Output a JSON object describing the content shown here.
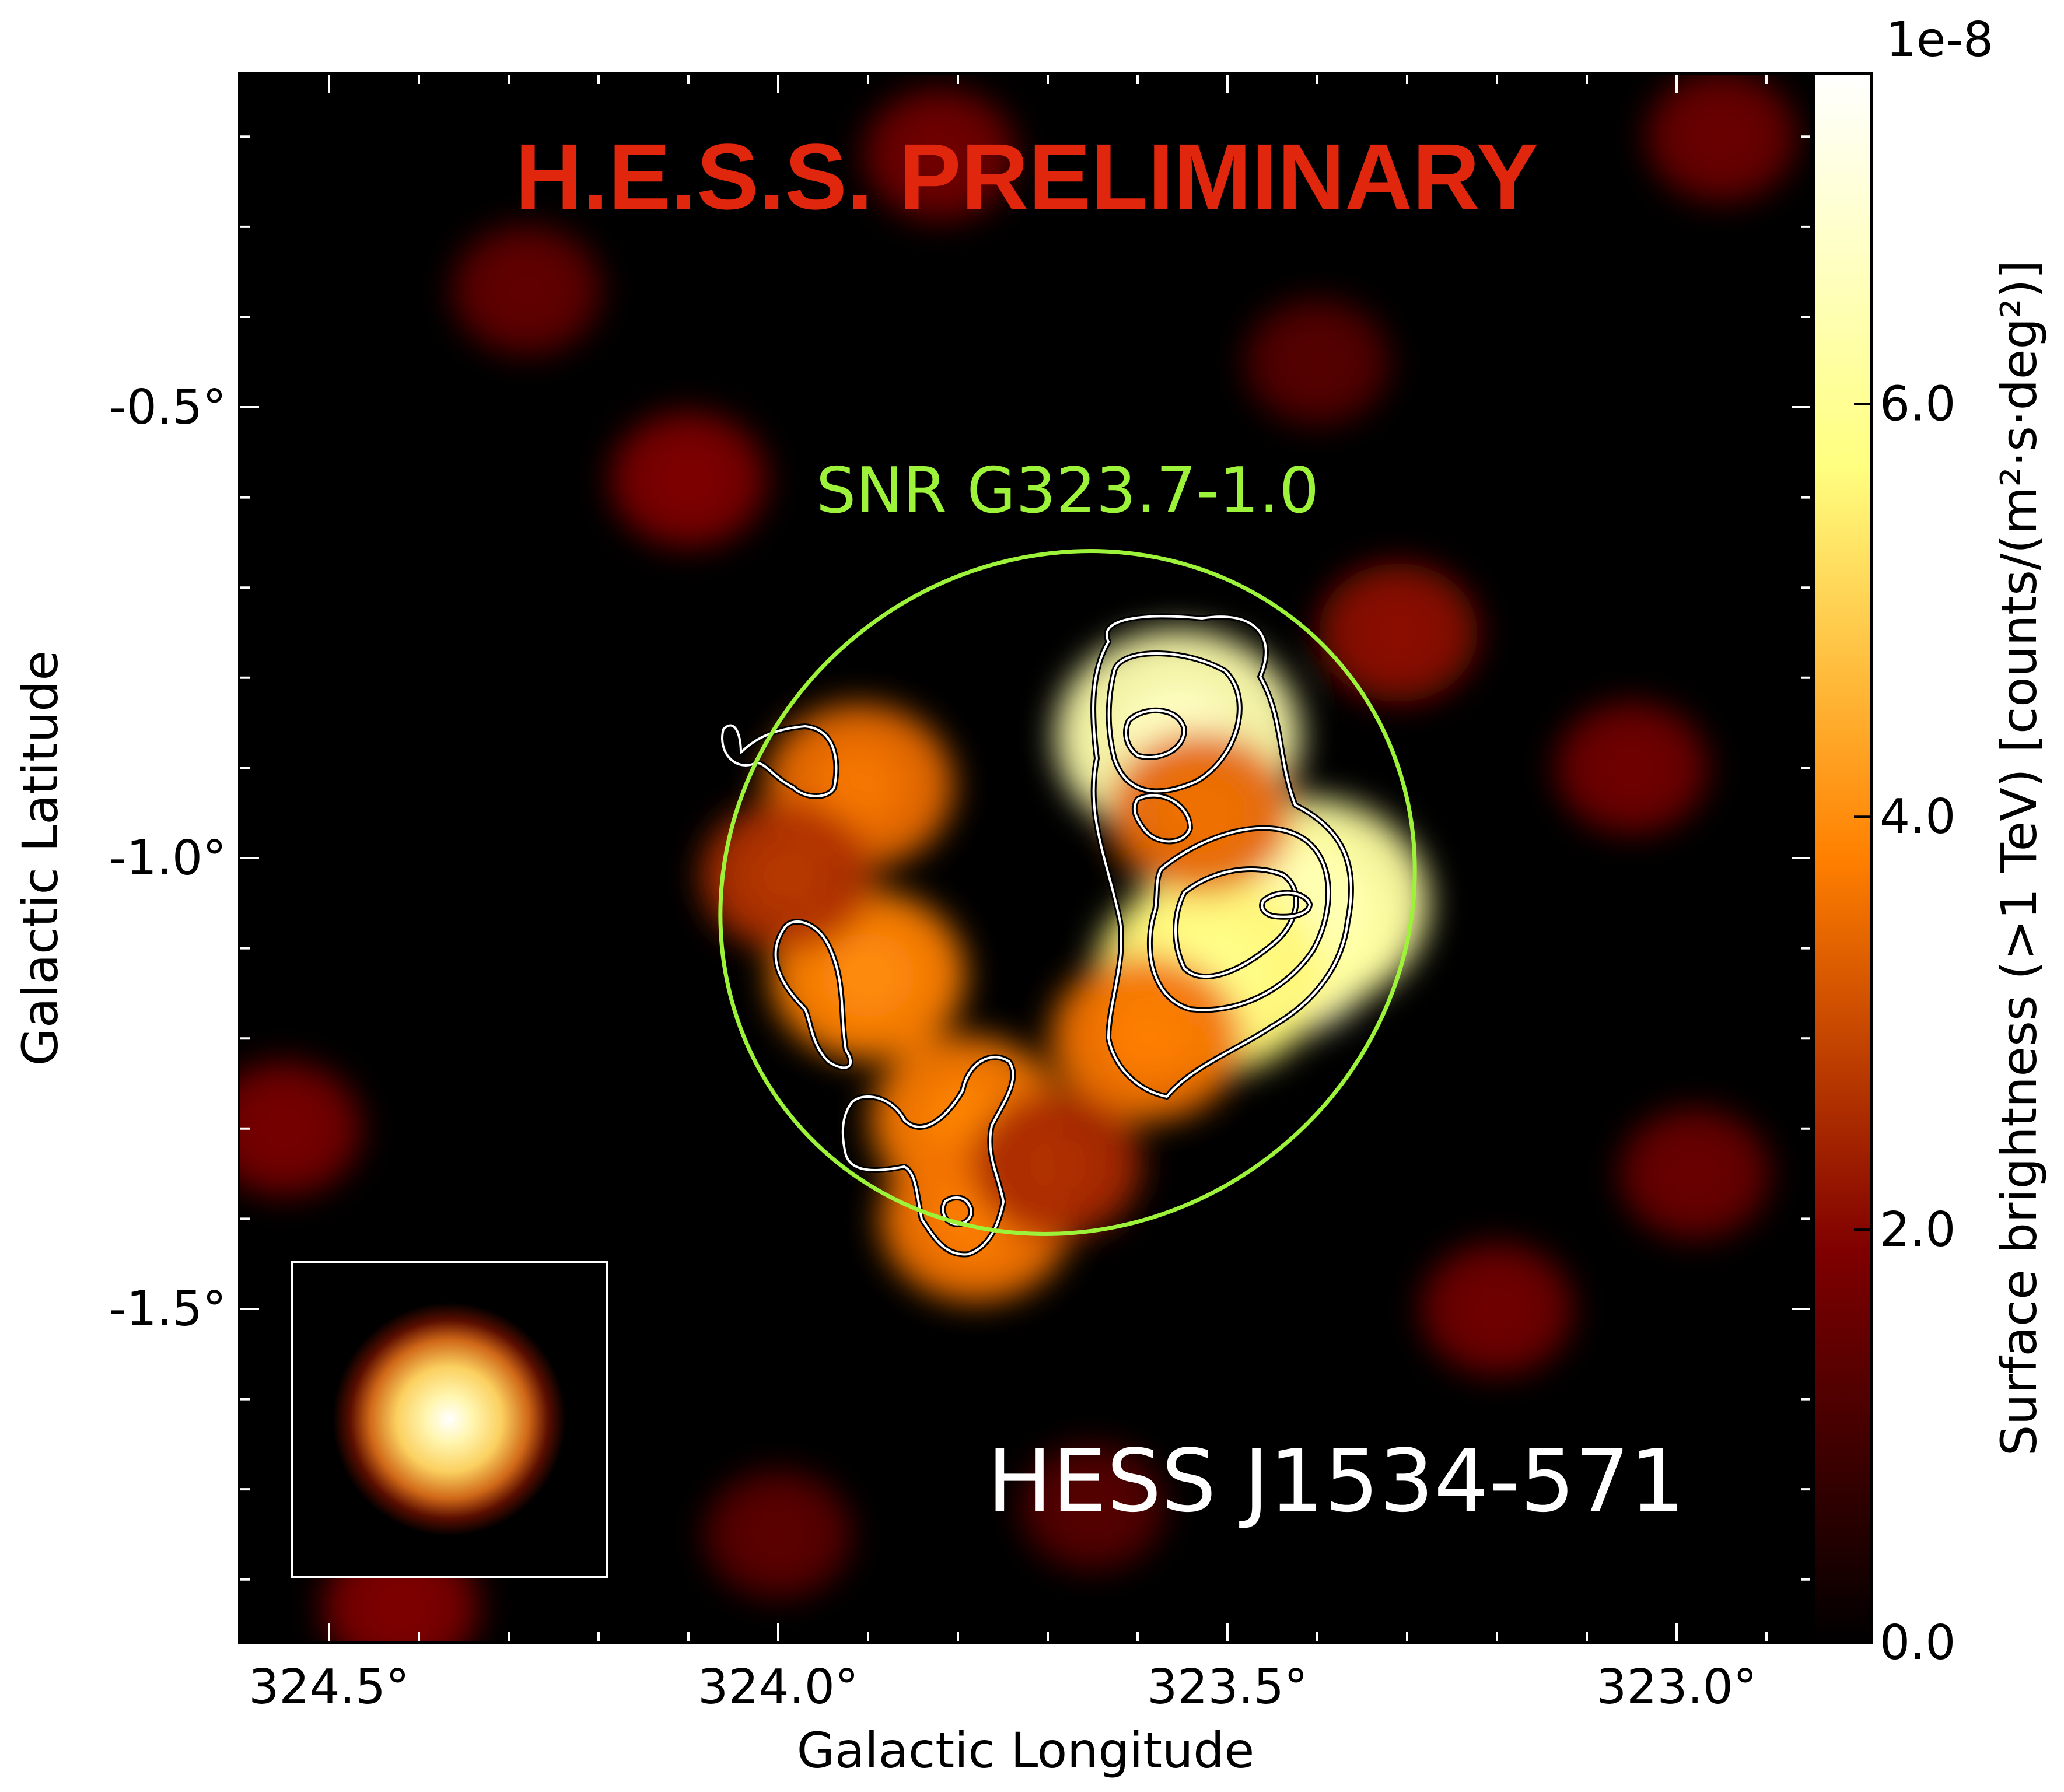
{
  "chart_data": {
    "type": "heatmap",
    "title": "",
    "xlabel": "Galactic Longitude",
    "ylabel": "Galactic Latitude",
    "xlim": [
      324.6,
      322.85
    ],
    "ylim": [
      -1.87,
      -0.13
    ],
    "x_ticks": [
      {
        "value": 324.5,
        "label": "324.5°"
      },
      {
        "value": 324.0,
        "label": "324.0°"
      },
      {
        "value": 323.5,
        "label": "323.5°"
      },
      {
        "value": 323.0,
        "label": "323.0°"
      }
    ],
    "y_ticks": [
      {
        "value": -0.5,
        "label": "-0.5°"
      },
      {
        "value": -1.0,
        "label": "-1.0°"
      },
      {
        "value": -1.5,
        "label": "-1.5°"
      }
    ],
    "colorbar": {
      "label": "Surface brightness (>1 TeV) [counts/(m²·s·deg²)]",
      "offset_label": "1e-8",
      "range": [
        0.0,
        7.6
      ],
      "ticks": [
        {
          "value": 0.0,
          "label": "0.0"
        },
        {
          "value": 2.0,
          "label": "2.0"
        },
        {
          "value": 4.0,
          "label": "4.0"
        },
        {
          "value": 6.0,
          "label": "6.0"
        }
      ],
      "colormap": "afmhot",
      "colors": [
        "#000000",
        "#5a0000",
        "#b33a00",
        "#e88a20",
        "#fbd060",
        "#ffff9a",
        "#ffffff"
      ]
    },
    "annotations": {
      "watermark": "H.E.S.S. PRELIMINARY",
      "watermark_color": "#e0260c",
      "region_label": "SNR G323.7-1.0",
      "region_color": "#9df23a",
      "source_label": "HESS J1534-571",
      "source_color": "#ffffff"
    },
    "region": {
      "shape": "ellipse",
      "center_l": 323.6,
      "center_b": -1.06,
      "semi_major_deg": 0.38,
      "semi_minor_deg": 0.35,
      "orientation": "tilted, major axis from lower-left to upper-right"
    },
    "blobs": [
      {
        "l": 323.555,
        "b": -0.865,
        "value": 6.4
      },
      {
        "l": 323.46,
        "b": -1.08,
        "value": 6.8
      },
      {
        "l": 323.41,
        "b": -1.05,
        "value": 6.2
      },
      {
        "l": 323.52,
        "b": -1.13,
        "value": 5.6
      },
      {
        "l": 323.53,
        "b": -0.95,
        "value": 3.4
      },
      {
        "l": 323.59,
        "b": -1.2,
        "value": 3.6
      },
      {
        "l": 323.9,
        "b": -1.13,
        "value": 3.8
      },
      {
        "l": 323.91,
        "b": -0.92,
        "value": 3.5
      },
      {
        "l": 323.79,
        "b": -1.29,
        "value": 3.7
      },
      {
        "l": 323.78,
        "b": -1.4,
        "value": 3.6
      },
      {
        "l": 323.99,
        "b": -1.02,
        "value": 2.6
      },
      {
        "l": 323.69,
        "b": -1.34,
        "value": 2.5
      },
      {
        "l": 323.31,
        "b": -0.75,
        "value": 2.0
      },
      {
        "l": 323.05,
        "b": -0.9,
        "value": 1.6
      },
      {
        "l": 324.1,
        "b": -0.58,
        "value": 1.8
      },
      {
        "l": 324.28,
        "b": -0.37,
        "value": 1.4
      },
      {
        "l": 323.2,
        "b": -1.5,
        "value": 1.6
      },
      {
        "l": 322.98,
        "b": -1.35,
        "value": 1.5
      },
      {
        "l": 324.55,
        "b": -1.3,
        "value": 1.7
      },
      {
        "l": 324.42,
        "b": -1.83,
        "value": 1.8
      },
      {
        "l": 323.65,
        "b": -1.72,
        "value": 1.2
      },
      {
        "l": 323.82,
        "b": -0.22,
        "value": 1.6
      },
      {
        "l": 322.95,
        "b": -0.2,
        "value": 1.5
      },
      {
        "l": 323.4,
        "b": -0.45,
        "value": 1.2
      },
      {
        "l": 324.0,
        "b": -1.75,
        "value": 1.3
      }
    ],
    "psf_inset": {
      "shape": "gaussian",
      "peak_value": 7.6
    }
  }
}
